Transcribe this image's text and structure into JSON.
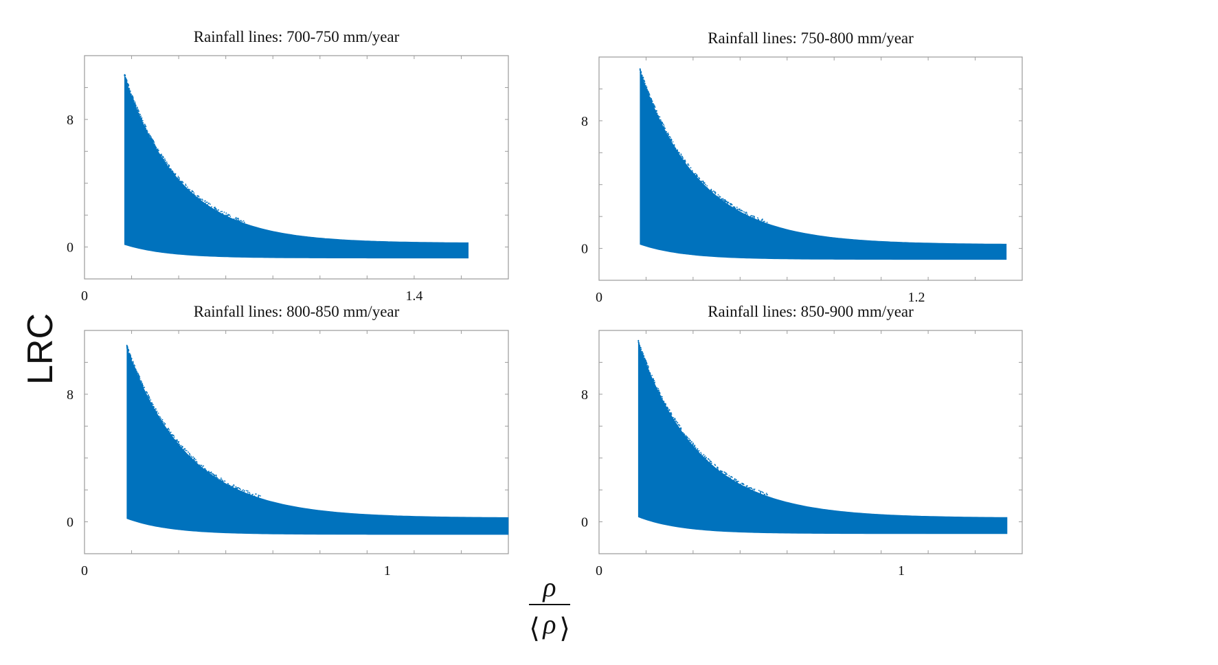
{
  "figure": {
    "ylabel": "LRC",
    "xlabel": {
      "numerator": "ρ",
      "denominator_symbol": "ρ",
      "denominator_left": "⟨",
      "denominator_right": "⟩"
    },
    "color": "#0072BD"
  },
  "chart_data": [
    {
      "type": "scatter",
      "title": "Rainfall lines: 700-750 mm/year",
      "xlim": [
        0,
        1.8
      ],
      "ylim": [
        -2,
        12
      ],
      "xticks": [
        0,
        1.4
      ],
      "yticks": [
        0,
        8
      ],
      "x_range": [
        0.17,
        1.63
      ],
      "upper_envelope": {
        "a": 10.7,
        "b": 5.0,
        "k": 4.2
      },
      "lower_envelope": {
        "a": 0.15,
        "b": -0.7,
        "k": 5.5
      },
      "color": "#0072BD"
    },
    {
      "type": "scatter",
      "title": "Rainfall lines: 750-800 mm/year",
      "xlim": [
        0,
        1.6
      ],
      "ylim": [
        -2,
        12
      ],
      "xticks": [
        0,
        1.2
      ],
      "yticks": [
        0,
        8
      ],
      "x_range": [
        0.155,
        1.54
      ],
      "upper_envelope": {
        "a": 11.1,
        "b": 5.5,
        "k": 4.4
      },
      "lower_envelope": {
        "a": 0.25,
        "b": -0.7,
        "k": 6.0
      },
      "color": "#0072BD"
    },
    {
      "type": "scatter",
      "title": "Rainfall lines: 800-850 mm/year",
      "xlim": [
        0,
        1.4
      ],
      "ylim": [
        -2,
        12
      ],
      "xticks": [
        0,
        1
      ],
      "yticks": [
        0,
        8
      ],
      "x_range": [
        0.14,
        1.4
      ],
      "upper_envelope": {
        "a": 10.9,
        "b": 5.9,
        "k": 4.9
      },
      "lower_envelope": {
        "a": 0.2,
        "b": -0.8,
        "k": 7.0
      },
      "color": "#0072BD"
    },
    {
      "type": "scatter",
      "title": "Rainfall lines: 850-900 mm/year",
      "xlim": [
        0,
        1.4
      ],
      "ylim": [
        -2,
        12
      ],
      "xticks": [
        0,
        1
      ],
      "yticks": [
        0,
        8
      ],
      "x_range": [
        0.13,
        1.35
      ],
      "upper_envelope": {
        "a": 11.2,
        "b": 5.8,
        "k": 4.9
      },
      "lower_envelope": {
        "a": 0.3,
        "b": -0.75,
        "k": 7.0
      },
      "color": "#0072BD"
    }
  ]
}
